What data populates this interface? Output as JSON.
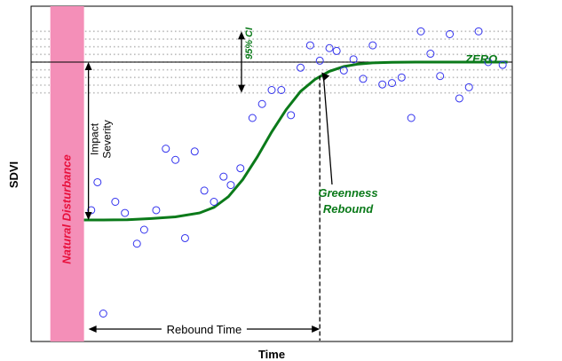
{
  "chart_data": {
    "type": "scatter",
    "title": "",
    "xlabel": "Time",
    "ylabel": "SDVI",
    "xlim": [
      0,
      100
    ],
    "ylim": [
      -100,
      20
    ],
    "baseline_label": "ZERO",
    "disturbance": {
      "label": "Natural Disturbance",
      "x_start": 4,
      "x_end": 11,
      "color": "#f48fb8"
    },
    "ci_band": {
      "label": "95% CI",
      "upper": 11,
      "lower": -11
    },
    "curve": {
      "name": "",
      "color": "#0b7a1a",
      "x": [
        11,
        15,
        20,
        25,
        30,
        35,
        38,
        41,
        44,
        47,
        50,
        53,
        56,
        59,
        62,
        65,
        68,
        71,
        75,
        80,
        85,
        90,
        95,
        99
      ],
      "y": [
        -56.5,
        -56.5,
        -56.4,
        -56.0,
        -55.4,
        -54.0,
        -52.0,
        -48.2,
        -42.0,
        -34.0,
        -25.0,
        -17.0,
        -10.5,
        -6.2,
        -3.3,
        -1.6,
        -0.7,
        -0.3,
        -0.1,
        0,
        0,
        0,
        0,
        0
      ]
    },
    "points": [
      {
        "x": 12.5,
        "y": -53
      },
      {
        "x": 13.8,
        "y": -43
      },
      {
        "x": 15,
        "y": -90
      },
      {
        "x": 17.5,
        "y": -50
      },
      {
        "x": 19.5,
        "y": -54
      },
      {
        "x": 22,
        "y": -65
      },
      {
        "x": 23.5,
        "y": -60
      },
      {
        "x": 26,
        "y": -53
      },
      {
        "x": 28,
        "y": -31
      },
      {
        "x": 30,
        "y": -35
      },
      {
        "x": 32,
        "y": -63
      },
      {
        "x": 34,
        "y": -32
      },
      {
        "x": 36,
        "y": -46
      },
      {
        "x": 38,
        "y": -50
      },
      {
        "x": 40,
        "y": -41
      },
      {
        "x": 41.5,
        "y": -44
      },
      {
        "x": 43.5,
        "y": -38
      },
      {
        "x": 46,
        "y": -20
      },
      {
        "x": 48,
        "y": -15
      },
      {
        "x": 50,
        "y": -10
      },
      {
        "x": 52,
        "y": -10
      },
      {
        "x": 54,
        "y": -19
      },
      {
        "x": 56,
        "y": -2
      },
      {
        "x": 58,
        "y": 6
      },
      {
        "x": 60,
        "y": 0.5
      },
      {
        "x": 62,
        "y": 5
      },
      {
        "x": 63.5,
        "y": 4
      },
      {
        "x": 65,
        "y": -3
      },
      {
        "x": 67,
        "y": 1
      },
      {
        "x": 69,
        "y": -6
      },
      {
        "x": 71,
        "y": 6
      },
      {
        "x": 73,
        "y": -8
      },
      {
        "x": 75,
        "y": -7.5
      },
      {
        "x": 77,
        "y": -5.5
      },
      {
        "x": 79,
        "y": -20
      },
      {
        "x": 81,
        "y": 11
      },
      {
        "x": 83,
        "y": 3
      },
      {
        "x": 85,
        "y": -5
      },
      {
        "x": 87,
        "y": 10
      },
      {
        "x": 89,
        "y": -13
      },
      {
        "x": 91,
        "y": -9
      },
      {
        "x": 93,
        "y": 11
      },
      {
        "x": 95,
        "y": 0
      },
      {
        "x": 98,
        "y": -1
      }
    ],
    "point_color": "#3333ee",
    "annotations": {
      "impact_severity": [
        "Impact",
        "Severity"
      ],
      "rebound_time": "Rebound Time",
      "greenness_rebound": [
        "Greenness",
        "Rebound"
      ],
      "rebound_x": 60
    },
    "grid": false,
    "legend": "none"
  }
}
